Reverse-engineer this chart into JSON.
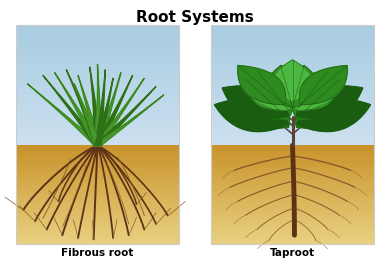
{
  "title": "Root Systems",
  "title_fontsize": 11,
  "title_fontweight": "bold",
  "label_left": "Fibrous root",
  "label_right": "Taproot",
  "label_fontsize": 7.5,
  "label_fontweight": "bold",
  "bg_color": "#ffffff",
  "sky_color_top": "#a8cce0",
  "sky_color_bottom": "#cce0f0",
  "soil_color_top": "#c8922a",
  "soil_color_bottom": "#e8d080",
  "root_color": "#8B5A2B",
  "root_color_dark": "#5C3317",
  "root_color_light": "#a07040",
  "grass_green_light": "#6dbf4f",
  "grass_green_mid": "#4a9e2f",
  "grass_green_dark": "#2d7015",
  "leaf_green_light": "#4db840",
  "leaf_green_mid": "#2e8b20",
  "leaf_green_dark": "#1a5c10",
  "stem_color": "#5D4037",
  "panel_border": "#cccccc"
}
